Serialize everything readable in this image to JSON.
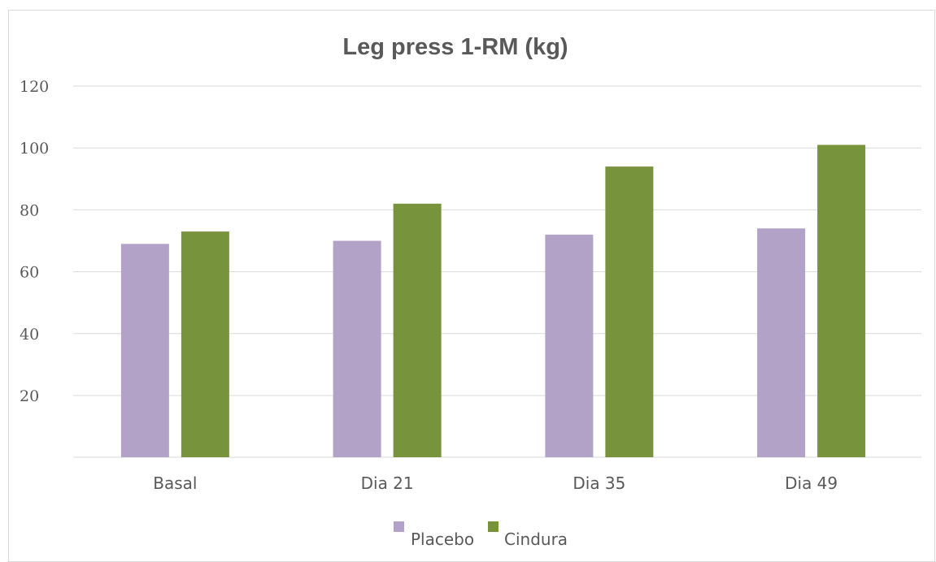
{
  "chart_data": {
    "type": "bar",
    "title": "Leg press 1-RM (kg)",
    "xlabel": "",
    "ylabel": "",
    "categories": [
      "Basal",
      "Dia 21",
      "Dia 35",
      "Dia 49"
    ],
    "series": [
      {
        "name": "Placebo",
        "values": [
          69,
          70,
          72,
          74
        ],
        "color": "#b3a2c7"
      },
      {
        "name": "Cindura",
        "values": [
          73,
          82,
          94,
          101
        ],
        "color": "#77933c"
      }
    ],
    "ylim": [
      0,
      120
    ],
    "yticks": [
      20,
      40,
      60,
      80,
      100,
      120
    ],
    "grid": true,
    "legend_position": "bottom"
  }
}
